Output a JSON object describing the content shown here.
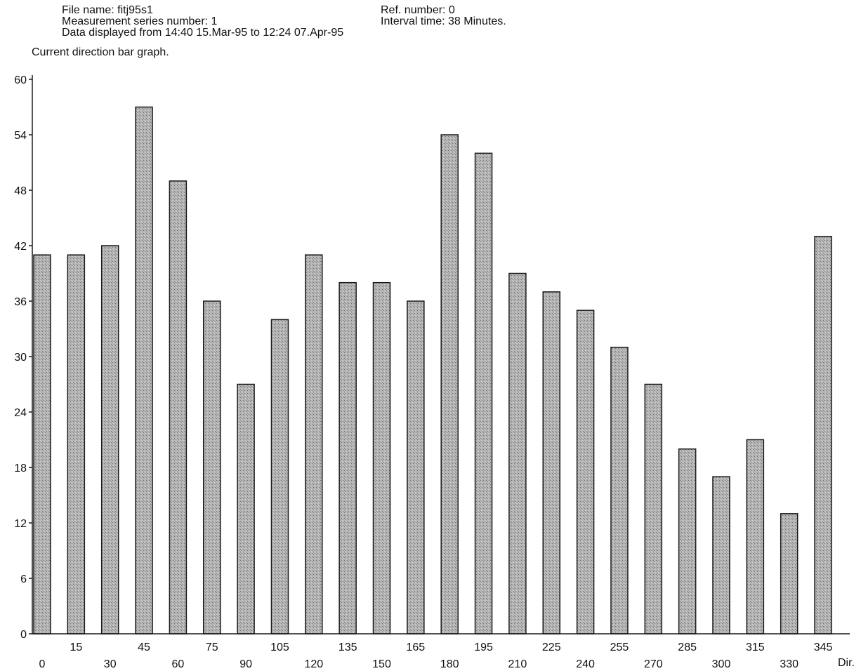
{
  "header": {
    "file_name": "File name: fitj95s1",
    "series_number": "Measurement series number: 1",
    "data_range": "Data displayed from 14:40 15.Mar-95 to 12:24 07.Apr-95",
    "ref_number": "Ref. number: 0",
    "interval": "Interval time: 38 Minutes."
  },
  "chart_data": {
    "type": "bar",
    "title": "Current direction bar graph.",
    "xlabel": "Dir.",
    "ylabel": "",
    "categories": [
      "0",
      "15",
      "30",
      "45",
      "60",
      "75",
      "90",
      "105",
      "120",
      "135",
      "150",
      "165",
      "180",
      "195",
      "210",
      "225",
      "240",
      "255",
      "270",
      "285",
      "300",
      "315",
      "330",
      "345"
    ],
    "values": [
      41,
      41,
      42,
      57,
      49,
      36,
      27,
      34,
      41,
      38,
      38,
      36,
      54,
      52,
      39,
      37,
      35,
      31,
      27,
      20,
      17,
      21,
      13,
      43
    ],
    "ylim": [
      0,
      60
    ],
    "yticks": [
      0,
      6,
      12,
      18,
      24,
      30,
      36,
      42,
      48,
      54,
      60
    ],
    "grid": false,
    "bar_fill": "#a9a9a9",
    "bar_stroke": "#1a1a1a"
  }
}
